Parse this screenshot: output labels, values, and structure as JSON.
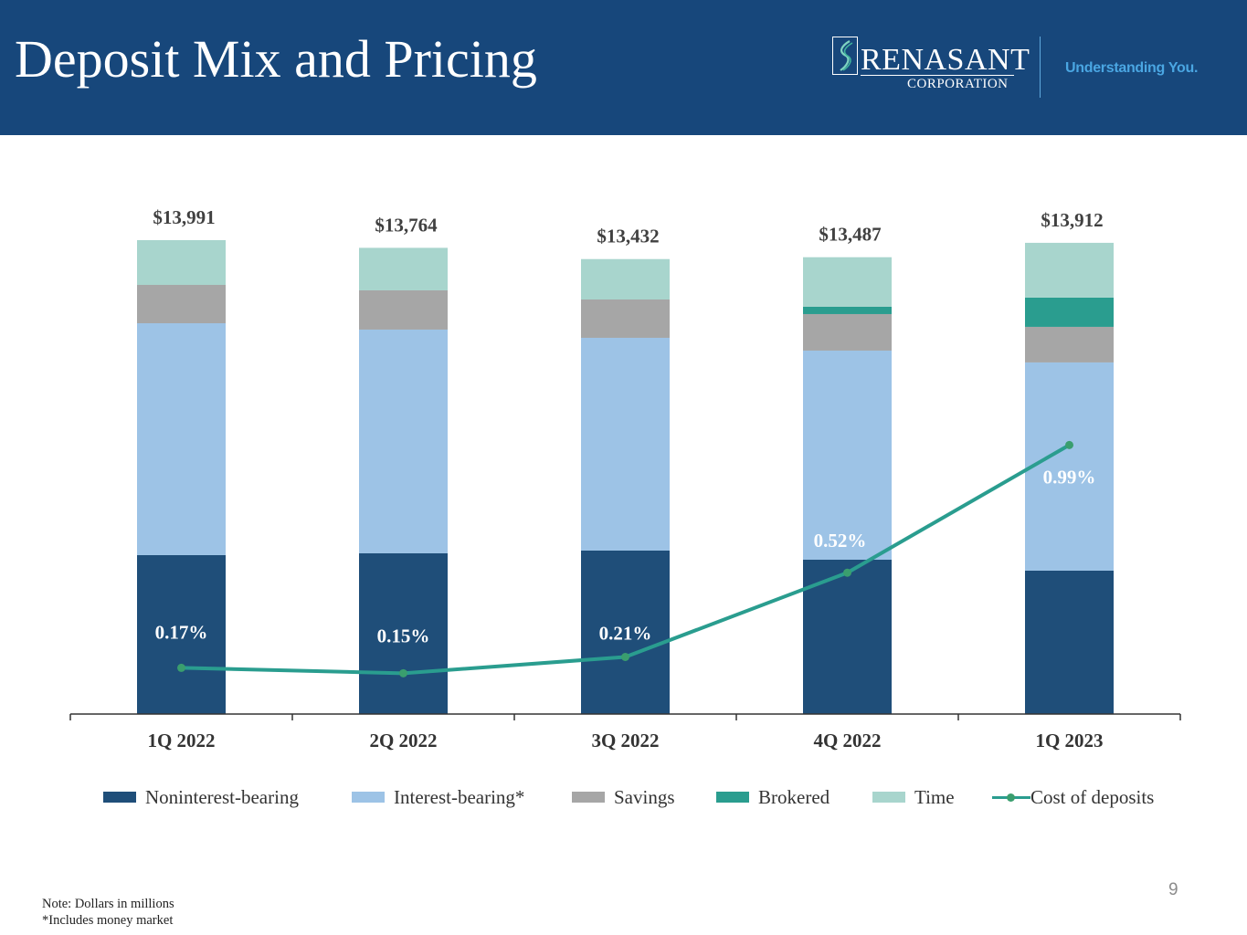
{
  "header": {
    "title": "Deposit Mix and Pricing",
    "logo": {
      "name": "RENASANT",
      "sub": "CORPORATION"
    },
    "tagline": "Understanding You."
  },
  "colors": {
    "header_bg": "#17477b",
    "noninterest_bearing": "#1f4e79",
    "interest_bearing": "#9dc3e6",
    "savings": "#a6a6a6",
    "brokered": "#2a9d8f",
    "time": "#a8d5cd",
    "cost_line": "#2a9d8f",
    "cost_marker": "#3a9e6e"
  },
  "chart_data": {
    "type": "bar",
    "stacked": true,
    "title": "Deposit Mix and Pricing",
    "xlabel": "",
    "ylabel": "",
    "units": "Dollars in millions",
    "categories": [
      "1Q 2022",
      "2Q 2022",
      "3Q 2022",
      "4Q 2022",
      "1Q 2023"
    ],
    "totals": [
      13991,
      13764,
      13432,
      13487,
      13912
    ],
    "total_labels": [
      "$13,991",
      "$13,764",
      "$13,432",
      "$13,487",
      "$13,912"
    ],
    "series": [
      {
        "name": "Noninterest-bearing",
        "key": "noninterest_bearing",
        "values": [
          4691,
          4745,
          4826,
          4556,
          4233
        ]
      },
      {
        "name": "Interest-bearing*",
        "key": "interest_bearing",
        "values": [
          6847,
          6605,
          6281,
          6174,
          6147
        ]
      },
      {
        "name": "Savings",
        "key": "savings",
        "values": [
          1132,
          1159,
          1132,
          1078,
          1051
        ]
      },
      {
        "name": "Brokered",
        "key": "brokered",
        "values": [
          0,
          0,
          0,
          216,
          863
        ]
      },
      {
        "name": "Time",
        "key": "time",
        "values": [
          1321,
          1255,
          1193,
          1463,
          1618
        ]
      }
    ],
    "line_series": {
      "name": "Cost of deposits",
      "values": [
        0.17,
        0.15,
        0.21,
        0.52,
        0.99
      ],
      "labels": [
        "0.17%",
        "0.15%",
        "0.21%",
        "0.52%",
        "0.99%"
      ]
    },
    "ylim": [
      0,
      14000
    ],
    "grid": false,
    "legend": "bottom"
  },
  "notes": [
    "Note:  Dollars in millions",
    "*Includes money market"
  ],
  "page_number": "9"
}
